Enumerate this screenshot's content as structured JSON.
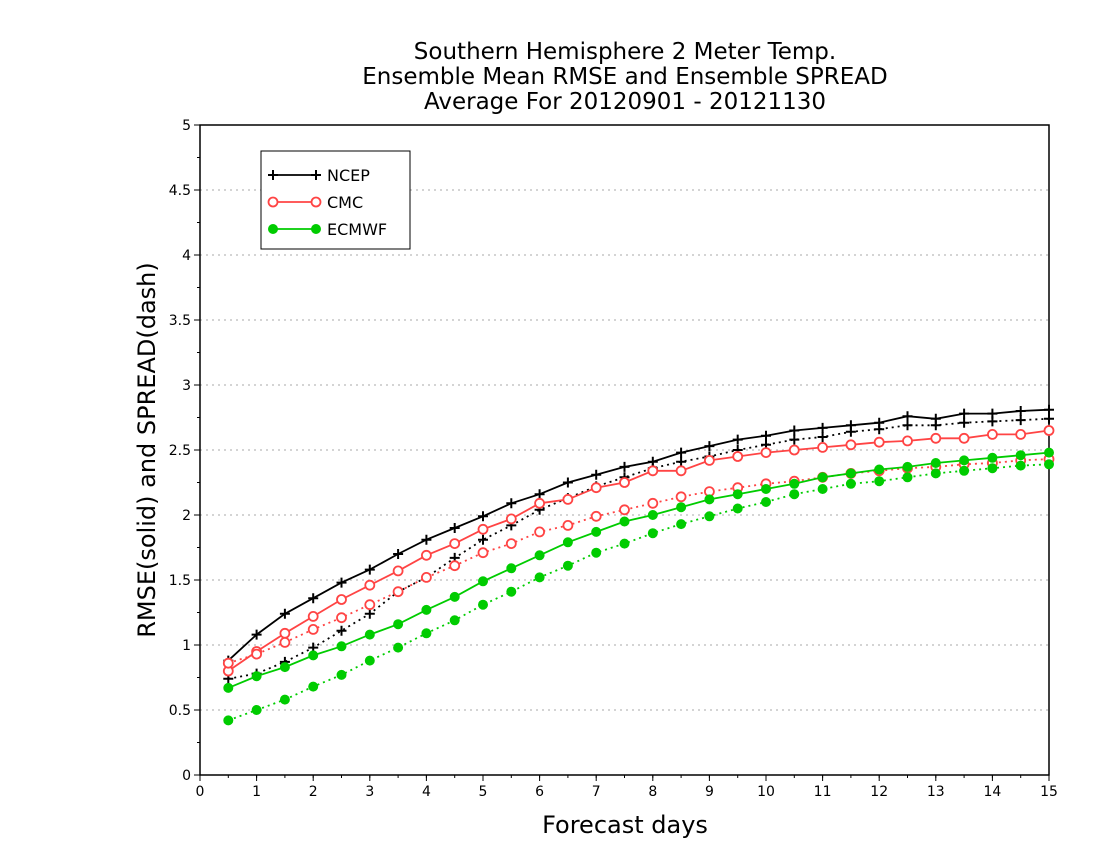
{
  "chart_data": {
    "type": "line",
    "title_lines": [
      "Southern Hemisphere 2 Meter Temp.",
      "Ensemble Mean RMSE and Ensemble SPREAD",
      "Average For 20120901 - 20121130"
    ],
    "xlabel": "Forecast days",
    "ylabel": "RMSE(solid) and SPREAD(dash)",
    "xlim": [
      0,
      15
    ],
    "ylim": [
      0,
      5
    ],
    "xticks": [
      "0",
      "1",
      "2",
      "3",
      "4",
      "5",
      "6",
      "7",
      "8",
      "9",
      "10",
      "11",
      "12",
      "13",
      "14",
      "15"
    ],
    "yticks": [
      "0",
      "0.5",
      "1",
      "1.5",
      "2",
      "2.5",
      "3",
      "3.5",
      "4",
      "4.5",
      "5"
    ],
    "grid": "horizontal dotted",
    "legend_position": "top-left",
    "legend": [
      "NCEP",
      "CMC",
      "ECMWF"
    ],
    "x": [
      0.5,
      1,
      1.5,
      2,
      2.5,
      3,
      3.5,
      4,
      4.5,
      5,
      5.5,
      6,
      6.5,
      7,
      7.5,
      8,
      8.5,
      9,
      9.5,
      10,
      10.5,
      11,
      11.5,
      12,
      12.5,
      13,
      13.5,
      14,
      14.5,
      15
    ],
    "series": [
      {
        "name": "NCEP",
        "metric": "RMSE",
        "line": "solid",
        "marker": "plus",
        "color": "#000000",
        "values": [
          0.88,
          1.08,
          1.24,
          1.36,
          1.48,
          1.58,
          1.7,
          1.81,
          1.9,
          1.99,
          2.09,
          2.16,
          2.25,
          2.31,
          2.37,
          2.41,
          2.48,
          2.53,
          2.58,
          2.61,
          2.65,
          2.67,
          2.69,
          2.71,
          2.76,
          2.74,
          2.78,
          2.78,
          2.8,
          2.81
        ]
      },
      {
        "name": "NCEP",
        "metric": "SPREAD",
        "line": "dash",
        "marker": "plus",
        "color": "#000000",
        "values": [
          0.74,
          0.78,
          0.87,
          0.98,
          1.11,
          1.24,
          1.41,
          1.52,
          1.67,
          1.81,
          1.92,
          2.04,
          2.13,
          2.22,
          2.29,
          2.36,
          2.41,
          2.45,
          2.5,
          2.54,
          2.58,
          2.6,
          2.64,
          2.66,
          2.69,
          2.69,
          2.71,
          2.72,
          2.73,
          2.74
        ]
      },
      {
        "name": "CMC",
        "metric": "RMSE",
        "line": "solid",
        "marker": "open-circle",
        "color": "#ff4444",
        "values": [
          0.8,
          0.95,
          1.09,
          1.22,
          1.35,
          1.46,
          1.57,
          1.69,
          1.78,
          1.89,
          1.97,
          2.09,
          2.12,
          2.21,
          2.25,
          2.34,
          2.34,
          2.42,
          2.45,
          2.48,
          2.5,
          2.52,
          2.54,
          2.56,
          2.57,
          2.59,
          2.59,
          2.62,
          2.62,
          2.65
        ]
      },
      {
        "name": "CMC",
        "metric": "SPREAD",
        "line": "dash",
        "marker": "open-circle",
        "color": "#ff4444",
        "values": [
          0.86,
          0.93,
          1.02,
          1.12,
          1.21,
          1.31,
          1.41,
          1.52,
          1.61,
          1.71,
          1.78,
          1.87,
          1.92,
          1.99,
          2.04,
          2.09,
          2.14,
          2.18,
          2.21,
          2.24,
          2.26,
          2.29,
          2.32,
          2.34,
          2.36,
          2.37,
          2.39,
          2.4,
          2.42,
          2.43
        ]
      },
      {
        "name": "ECMWF",
        "metric": "RMSE",
        "line": "solid",
        "marker": "filled-circle",
        "color": "#00cc00",
        "values": [
          0.67,
          0.76,
          0.83,
          0.92,
          0.99,
          1.08,
          1.16,
          1.27,
          1.37,
          1.49,
          1.59,
          1.69,
          1.79,
          1.87,
          1.95,
          2.0,
          2.06,
          2.12,
          2.16,
          2.2,
          2.24,
          2.29,
          2.32,
          2.35,
          2.37,
          2.4,
          2.42,
          2.44,
          2.46,
          2.48
        ]
      },
      {
        "name": "ECMWF",
        "metric": "SPREAD",
        "line": "dash",
        "marker": "filled-circle",
        "color": "#00cc00",
        "values": [
          0.42,
          0.5,
          0.58,
          0.68,
          0.77,
          0.88,
          0.98,
          1.09,
          1.19,
          1.31,
          1.41,
          1.52,
          1.61,
          1.71,
          1.78,
          1.86,
          1.93,
          1.99,
          2.05,
          2.1,
          2.16,
          2.2,
          2.24,
          2.26,
          2.29,
          2.32,
          2.34,
          2.36,
          2.38,
          2.39
        ]
      }
    ]
  }
}
